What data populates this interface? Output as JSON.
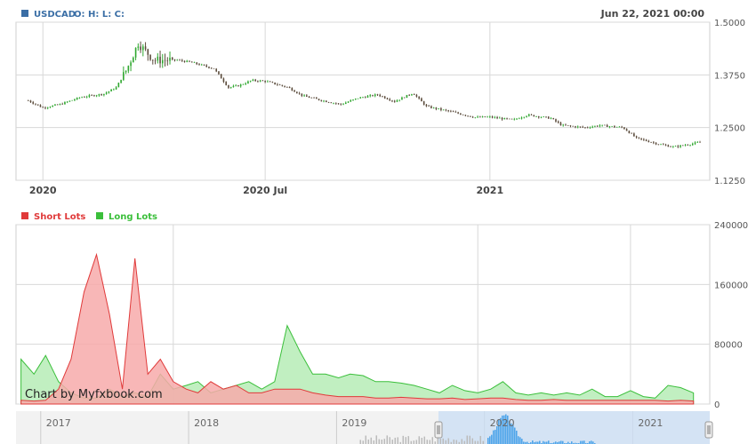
{
  "header": {
    "symbol": "USDCAD",
    "ohlc_label": "O: H: L: C:",
    "date": "Jun 22, 2021 00:00",
    "symbol_color": "#3a6ea5"
  },
  "watermark": "Chart by Myfxbook.com",
  "colors": {
    "price_up": "#2fa72f",
    "price_down": "#5a4a3a",
    "short": "#e03a3a",
    "short_fill": "#f7aaaa",
    "long": "#3bbf3b",
    "long_fill": "#b6ecb6",
    "grid": "#d8d8d8",
    "nav_bg": "#f2f2f2",
    "nav_selection": "#c9def4",
    "nav_series": "#4aa3ea"
  },
  "chart_data": [
    {
      "type": "line",
      "series": [
        {
          "name": "USDCAD",
          "x": [
            "2019-12-20",
            "2020-01-01",
            "2020-01-15",
            "2020-02-01",
            "2020-02-20",
            "2020-03-01",
            "2020-03-10",
            "2020-03-19",
            "2020-04-01",
            "2020-04-20",
            "2020-05-01",
            "2020-05-20",
            "2020-06-01",
            "2020-06-10",
            "2020-06-20",
            "2020-07-01",
            "2020-07-20",
            "2020-08-01",
            "2020-08-20",
            "2020-09-01",
            "2020-09-15",
            "2020-10-01",
            "2020-10-15",
            "2020-10-30",
            "2020-11-10",
            "2020-12-01",
            "2020-12-20",
            "2021-01-01",
            "2021-01-20",
            "2021-02-01",
            "2021-02-20",
            "2021-03-01",
            "2021-03-20",
            "2021-04-01",
            "2021-04-20",
            "2021-05-01",
            "2021-05-20",
            "2021-06-01",
            "2021-06-22"
          ],
          "values": [
            1.314,
            1.297,
            1.305,
            1.322,
            1.33,
            1.345,
            1.39,
            1.45,
            1.41,
            1.41,
            1.405,
            1.39,
            1.345,
            1.35,
            1.362,
            1.36,
            1.345,
            1.325,
            1.312,
            1.305,
            1.32,
            1.328,
            1.312,
            1.332,
            1.3,
            1.287,
            1.274,
            1.275,
            1.268,
            1.28,
            1.272,
            1.255,
            1.25,
            1.255,
            1.25,
            1.225,
            1.21,
            1.204,
            1.215
          ]
        }
      ],
      "ylim": [
        1.125,
        1.5
      ],
      "yticks": [
        "1.5000",
        "1.3750",
        "1.2500",
        "1.1250"
      ],
      "xticks": [
        "2020",
        "2020 Jul",
        "2021"
      ]
    },
    {
      "type": "area",
      "legend": [
        "Short Lots",
        "Long Lots"
      ],
      "ylim": [
        0,
        240000
      ],
      "yticks": [
        "240000",
        "160000",
        "80000",
        "0"
      ],
      "x": [
        "2017-01",
        "2017-02",
        "2017-03",
        "2017-04",
        "2017-05",
        "2017-06",
        "2017-07",
        "2017-08",
        "2017-09",
        "2017-10",
        "2017-11",
        "2017-12",
        "2018-01",
        "2018-02",
        "2018-03",
        "2018-04",
        "2018-05",
        "2018-06",
        "2018-07",
        "2018-08",
        "2018-09",
        "2018-10",
        "2018-11",
        "2018-12",
        "2019-01",
        "2019-02",
        "2019-03",
        "2019-04",
        "2019-05",
        "2019-06",
        "2019-07",
        "2019-08",
        "2019-09",
        "2019-10",
        "2019-11",
        "2019-12",
        "2020-01",
        "2020-02",
        "2020-03",
        "2020-04",
        "2020-05",
        "2020-06",
        "2020-07",
        "2020-08",
        "2020-09",
        "2020-10",
        "2020-11",
        "2020-12",
        "2021-01",
        "2021-02",
        "2021-03",
        "2021-04",
        "2021-05",
        "2021-06"
      ],
      "series": [
        {
          "name": "Short Lots",
          "values": [
            5000,
            4000,
            5000,
            20000,
            60000,
            150000,
            200000,
            120000,
            20000,
            195000,
            40000,
            60000,
            30000,
            20000,
            15000,
            30000,
            20000,
            25000,
            15000,
            15000,
            20000,
            20000,
            20000,
            15000,
            12000,
            10000,
            10000,
            10000,
            8000,
            8000,
            9000,
            8000,
            7000,
            7000,
            8000,
            6000,
            7000,
            8000,
            8000,
            6000,
            5000,
            5000,
            6000,
            5000,
            5000,
            5000,
            5000,
            5000,
            5000,
            5000,
            5000,
            4000,
            5000,
            4000
          ]
        },
        {
          "name": "Long Lots",
          "values": [
            60000,
            40000,
            65000,
            30000,
            15000,
            8000,
            8000,
            20000,
            10000,
            15000,
            10000,
            40000,
            20000,
            25000,
            30000,
            15000,
            20000,
            25000,
            30000,
            20000,
            30000,
            105000,
            70000,
            40000,
            40000,
            35000,
            40000,
            38000,
            30000,
            30000,
            28000,
            25000,
            20000,
            15000,
            25000,
            18000,
            15000,
            20000,
            30000,
            15000,
            12000,
            15000,
            12000,
            15000,
            12000,
            20000,
            10000,
            10000,
            18000,
            10000,
            8000,
            25000,
            22000,
            15000
          ]
        }
      ]
    }
  ],
  "navigator": {
    "years": [
      "2017",
      "2018",
      "2019",
      "2020",
      "2021"
    ]
  }
}
